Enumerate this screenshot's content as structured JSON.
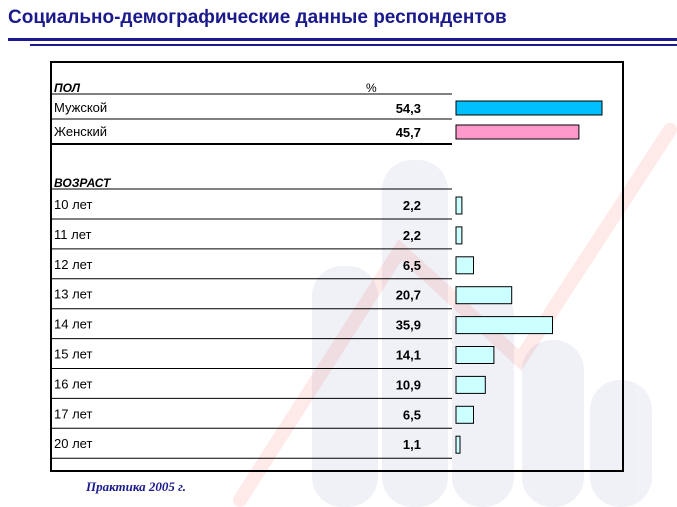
{
  "title": "Социально-демографические данные респондентов",
  "footer": "Практика 2005 г.",
  "chart_data": {
    "type": "bar",
    "orientation": "horizontal",
    "value_header": "%",
    "sections": [
      {
        "label": "ПОЛ",
        "rows": [
          {
            "category": "Мужской",
            "value": 54.3,
            "display": "54,3",
            "color": "#00bfff"
          },
          {
            "category": "Женский",
            "value": 45.7,
            "display": "45,7",
            "color": "#ff99cc"
          }
        ]
      },
      {
        "label": "ВОЗРАСТ",
        "rows": [
          {
            "category": "10 лет",
            "value": 2.2,
            "display": "2,2",
            "color": "#ccffff"
          },
          {
            "category": "11 лет",
            "value": 2.2,
            "display": "2,2",
            "color": "#ccffff"
          },
          {
            "category": "12 лет",
            "value": 6.5,
            "display": "6,5",
            "color": "#ccffff"
          },
          {
            "category": "13 лет",
            "value": 20.7,
            "display": "20,7",
            "color": "#ccffff"
          },
          {
            "category": "14 лет",
            "value": 35.9,
            "display": "35,9",
            "color": "#ccffff"
          },
          {
            "category": "15 лет",
            "value": 14.1,
            "display": "14,1",
            "color": "#ccffff"
          },
          {
            "category": "16 лет",
            "value": 10.9,
            "display": "10,9",
            "color": "#ccffff"
          },
          {
            "category": "17 лет",
            "value": 6.5,
            "display": "6,5",
            "color": "#ccffff"
          },
          {
            "category": "20 лет",
            "value": 1.1,
            "display": "1,1",
            "color": "#ccffff"
          }
        ]
      }
    ],
    "colors": {
      "title": "#1a1a8c",
      "border": "#000000",
      "bar_border": "#000000"
    }
  }
}
